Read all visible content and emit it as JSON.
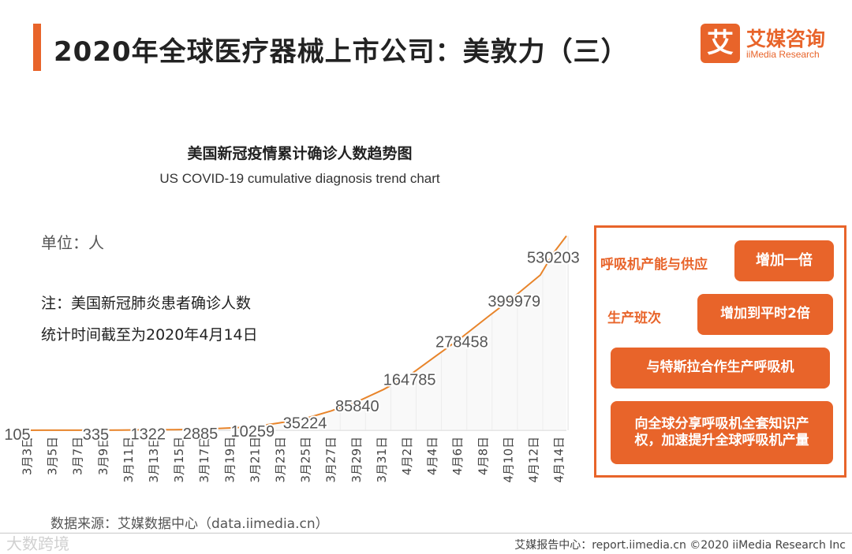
{
  "page": {
    "title": "2020年全球医疗器械上市公司：美敦力（三）"
  },
  "logo": {
    "mark": "艾",
    "cn": "艾媒咨询",
    "en": "iiMedia Research"
  },
  "chart_data": {
    "type": "line",
    "title": "美国新冠疫情累计确诊人数趋势图",
    "subtitle": "US COVID-19 cumulative diagnosis trend chart",
    "unit_label": "单位：人",
    "note_line1": "注：美国新冠肺炎患者确诊人数",
    "note_line2": "统计时间截至为2020年4月14日",
    "categories": [
      "3月3日",
      "3月5日",
      "3月7日",
      "3月9日",
      "3月11日",
      "3月13日",
      "3月15日",
      "3月17日",
      "3月19日",
      "3月21日",
      "3月23日",
      "3月25日",
      "3月27日",
      "3月29日",
      "3月31日",
      "4月2日",
      "4月4日",
      "4月6日",
      "4月8日",
      "4月10日",
      "4月12日",
      "4月14日"
    ],
    "x_start": 0,
    "x_end": 42,
    "points": [
      {
        "x": 0,
        "value": 105,
        "label": "105"
      },
      {
        "x": 2,
        "value": 150
      },
      {
        "x": 4,
        "value": 250
      },
      {
        "x": 6,
        "value": 335,
        "label": "335"
      },
      {
        "x": 8,
        "value": 700
      },
      {
        "x": 10,
        "value": 1322,
        "label": "1322"
      },
      {
        "x": 12,
        "value": 2000
      },
      {
        "x": 14,
        "value": 2885,
        "label": "2885"
      },
      {
        "x": 16,
        "value": 6500
      },
      {
        "x": 18,
        "value": 10259,
        "label": "10259"
      },
      {
        "x": 20,
        "value": 22000
      },
      {
        "x": 22,
        "value": 35224,
        "label": "35224"
      },
      {
        "x": 24,
        "value": 58000
      },
      {
        "x": 26,
        "value": 85840,
        "label": "85840"
      },
      {
        "x": 28,
        "value": 122000
      },
      {
        "x": 30,
        "value": 164785,
        "label": "164785"
      },
      {
        "x": 32,
        "value": 222000
      },
      {
        "x": 34,
        "value": 278458,
        "label": "278458"
      },
      {
        "x": 36,
        "value": 340000
      },
      {
        "x": 38,
        "value": 399979,
        "label": "399979"
      },
      {
        "x": 40,
        "value": 465000
      },
      {
        "x": 41,
        "value": 530203,
        "label": "530203"
      },
      {
        "x": 42,
        "value": 582000
      }
    ],
    "y_range": [
      0,
      590000
    ],
    "grid": "vertical",
    "line_color": "#e8842a"
  },
  "panel": {
    "rows": [
      {
        "label": "呼吸机产能与供应",
        "button": "增加一倍"
      },
      {
        "label": "生产班次",
        "button": "增加到平时2倍"
      }
    ],
    "wide_buttons": [
      "与特斯拉合作生产呼吸机",
      "向全球分享呼吸机全套知识产权，加速提升全球呼吸机产量"
    ],
    "accent_color": "#e8642a"
  },
  "source": "数据来源：艾媒数据中心（data.iimedia.cn）",
  "footer": {
    "left": "大数跨境",
    "right": "艾媒报告中心：report.iimedia.cn  ©2020  iiMedia Research  Inc"
  }
}
